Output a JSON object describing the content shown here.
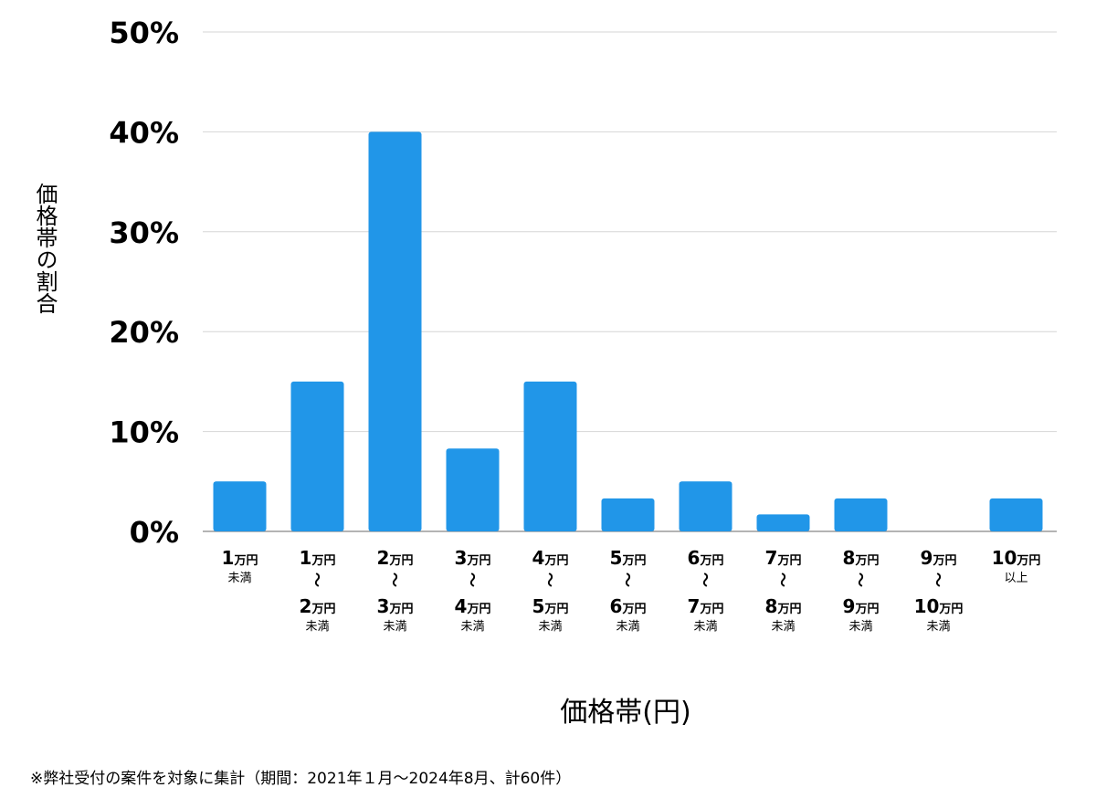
{
  "chart_data": {
    "type": "bar",
    "title": "",
    "xlabel": "価格帯(円)",
    "ylabel": "価格帯の割合",
    "ylim": [
      0,
      50
    ],
    "yticks": [
      "0%",
      "10%",
      "20%",
      "30%",
      "40%",
      "50%"
    ],
    "grid": true,
    "bar_color": "#2196e8",
    "categories": [
      {
        "top": "1",
        "top_unit": "万円",
        "sep": "",
        "bottom": "",
        "bottom_unit": "",
        "note": "未満"
      },
      {
        "top": "1",
        "top_unit": "万円",
        "sep": "〜",
        "bottom": "2",
        "bottom_unit": "万円",
        "note": "未満"
      },
      {
        "top": "2",
        "top_unit": "万円",
        "sep": "〜",
        "bottom": "3",
        "bottom_unit": "万円",
        "note": "未満"
      },
      {
        "top": "3",
        "top_unit": "万円",
        "sep": "〜",
        "bottom": "4",
        "bottom_unit": "万円",
        "note": "未満"
      },
      {
        "top": "4",
        "top_unit": "万円",
        "sep": "〜",
        "bottom": "5",
        "bottom_unit": "万円",
        "note": "未満"
      },
      {
        "top": "5",
        "top_unit": "万円",
        "sep": "〜",
        "bottom": "6",
        "bottom_unit": "万円",
        "note": "未満"
      },
      {
        "top": "6",
        "top_unit": "万円",
        "sep": "〜",
        "bottom": "7",
        "bottom_unit": "万円",
        "note": "未満"
      },
      {
        "top": "7",
        "top_unit": "万円",
        "sep": "〜",
        "bottom": "8",
        "bottom_unit": "万円",
        "note": "未満"
      },
      {
        "top": "8",
        "top_unit": "万円",
        "sep": "〜",
        "bottom": "9",
        "bottom_unit": "万円",
        "note": "未満"
      },
      {
        "top": "9",
        "top_unit": "万円",
        "sep": "〜",
        "bottom": "10",
        "bottom_unit": "万円",
        "note": "未満"
      },
      {
        "top": "10",
        "top_unit": "万円",
        "sep": "",
        "bottom": "",
        "bottom_unit": "",
        "note": "以上"
      }
    ],
    "values": [
      5.0,
      15.0,
      40.0,
      8.3,
      15.0,
      3.3,
      5.0,
      1.7,
      3.3,
      0,
      3.3
    ]
  },
  "footnote": "※弊社受付の案件を対象に集計（期間：2021年１月〜2024年8月、計60件）"
}
